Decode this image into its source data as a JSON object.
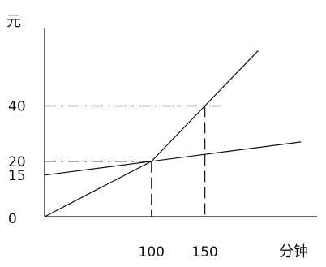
{
  "chart_data": {
    "type": "line",
    "xlabel": "分钟",
    "ylabel": "元",
    "origin_label": "0",
    "x_ticks": [
      100,
      150
    ],
    "y_ticks": [
      15,
      20,
      40
    ],
    "xlim": [
      0,
      255
    ],
    "ylim": [
      0,
      68
    ],
    "grid": false,
    "series": [
      {
        "x": [
          0,
          100,
          150,
          200
        ],
        "y": [
          0,
          20,
          40,
          60
        ]
      },
      {
        "x": [
          0,
          100,
          150,
          240
        ],
        "y": [
          15,
          20,
          22.5,
          27
        ]
      }
    ],
    "reference_lines": {
      "horizontal": [
        20,
        40
      ],
      "vertical": [
        100,
        150
      ]
    }
  }
}
